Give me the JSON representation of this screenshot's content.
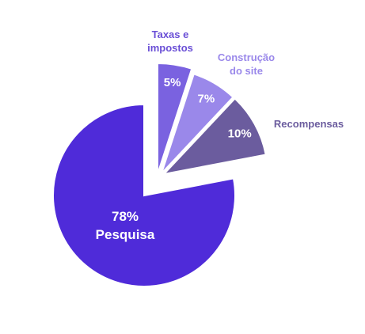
{
  "chart_data": {
    "type": "pie",
    "title": "",
    "slices": [
      {
        "label": "Pesquisa",
        "value": 78,
        "value_label": "78%",
        "color": "#4f2bd9",
        "label_position": "inside"
      },
      {
        "label": "Taxas e impostos",
        "label_lines": [
          "Taxas e",
          "impostos"
        ],
        "value": 5,
        "value_label": "5%",
        "color": "#7a62e0",
        "label_color": "#6a4fd6",
        "label_position": "outside"
      },
      {
        "label": "Construção do site",
        "label_lines": [
          "Construção",
          "do site"
        ],
        "value": 7,
        "value_label": "7%",
        "color": "#9a88ea",
        "label_color": "#9a88ea",
        "label_position": "outside"
      },
      {
        "label": "Recompensas",
        "label_lines": [
          "Recompensas"
        ],
        "value": 10,
        "value_label": "10%",
        "color": "#6b5c9e",
        "label_color": "#6b5c9e",
        "label_position": "outside"
      }
    ],
    "exploded": true,
    "legend": "none"
  }
}
